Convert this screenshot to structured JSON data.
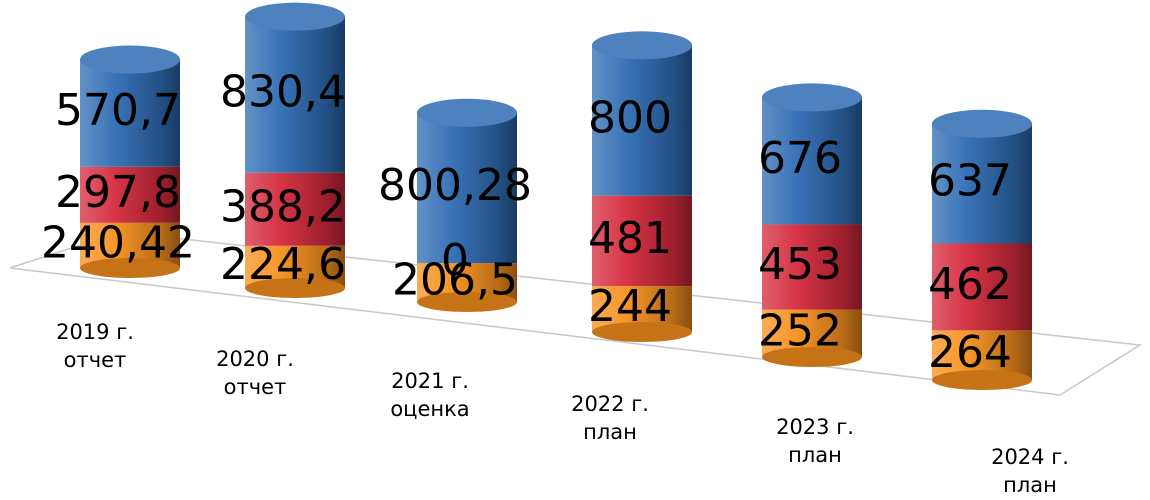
{
  "chart_data": {
    "type": "bar3d_stacked",
    "categories": [
      "2019 г. отчет",
      "2020 г. отчет",
      "2021 г. оценка",
      "2022 г. план",
      "2023 г. план",
      "2024 г. план"
    ],
    "series": [
      {
        "color": "#f7901e",
        "values": [
          240.42,
          224.6,
          206.5,
          244,
          252,
          264
        ],
        "value_labels": [
          "240,42",
          "224,6",
          "206,5",
          "244",
          "252",
          "264"
        ]
      },
      {
        "color": "#d42a3c",
        "values": [
          297.8,
          388.2,
          0,
          481,
          453,
          462
        ],
        "value_labels": [
          "297,8",
          "388,2",
          "0",
          "481",
          "453",
          "462"
        ]
      },
      {
        "color": "#2f6cb3",
        "values": [
          570.7,
          830.4,
          800.28,
          800,
          676,
          637
        ],
        "value_labels": [
          "570,7",
          "830,4",
          "800,28",
          "800",
          "676",
          "637"
        ]
      }
    ]
  }
}
